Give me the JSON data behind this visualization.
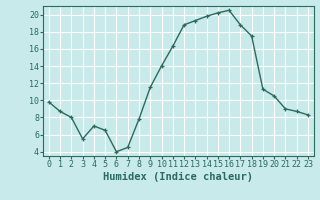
{
  "x": [
    0,
    1,
    2,
    3,
    4,
    5,
    6,
    7,
    8,
    9,
    10,
    11,
    12,
    13,
    14,
    15,
    16,
    17,
    18,
    19,
    20,
    21,
    22,
    23
  ],
  "y": [
    9.8,
    8.7,
    8.0,
    5.5,
    7.0,
    6.5,
    4.0,
    4.5,
    7.8,
    11.5,
    14.0,
    16.3,
    18.8,
    19.3,
    19.8,
    20.2,
    20.5,
    18.8,
    17.5,
    11.3,
    10.5,
    9.0,
    8.7,
    8.3
  ],
  "line_color": "#2a6b5e",
  "marker": "+",
  "bg_color": "#c8eaea",
  "grid_color": "#ffffff",
  "xlabel": "Humidex (Indice chaleur)",
  "ylim": [
    3.5,
    21.0
  ],
  "xlim": [
    -0.5,
    23.5
  ],
  "yticks": [
    4,
    6,
    8,
    10,
    12,
    14,
    16,
    18,
    20
  ],
  "xticks": [
    0,
    1,
    2,
    3,
    4,
    5,
    6,
    7,
    8,
    9,
    10,
    11,
    12,
    13,
    14,
    15,
    16,
    17,
    18,
    19,
    20,
    21,
    22,
    23
  ],
  "tick_fontsize": 6,
  "label_fontsize": 7.5
}
